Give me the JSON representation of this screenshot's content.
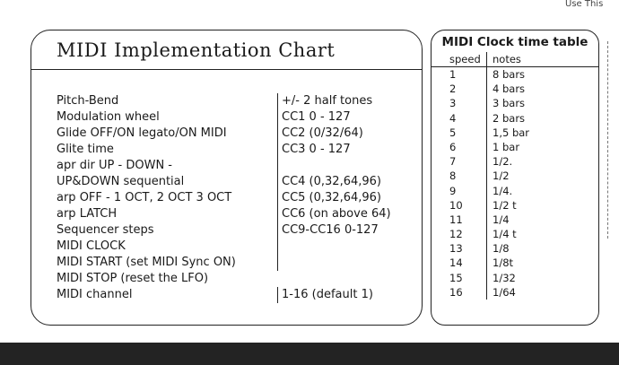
{
  "top_note": "Use This",
  "implementation_chart": {
    "title": "MIDI Implementation Chart",
    "rows": [
      {
        "function": "Pitch-Bend",
        "value": "+/- 2 half tones"
      },
      {
        "function": "Modulation wheel",
        "value": "CC1 0 - 127"
      },
      {
        "function": "Glide OFF/ON legato/ON MIDI",
        "value": "CC2 (0/32/64)"
      },
      {
        "function": "Glite time",
        "value": "CC3 0 - 127"
      },
      {
        "function": "apr dir UP - DOWN -",
        "value": ""
      },
      {
        "function": "UP&DOWN sequential",
        "value": "CC4 (0,32,64,96)"
      },
      {
        "function": "arp OFF - 1 OCT, 2 OCT 3 OCT",
        "value": "CC5 (0,32,64,96)"
      },
      {
        "function": "arp LATCH",
        "value": "CC6  (on above 64)"
      },
      {
        "function": "Sequencer steps",
        "value": "CC9-CC16 0-127"
      },
      {
        "function": "MIDI CLOCK",
        "value": ""
      },
      {
        "function": "MIDI START (set MIDI Sync ON)",
        "value": ""
      },
      {
        "function": "MIDI STOP (reset the LFO)",
        "value": ""
      },
      {
        "function": "MIDI channel",
        "value": "1-16 (default 1)"
      }
    ]
  },
  "clock_table": {
    "title": "MIDI Clock time table",
    "headers": {
      "speed": "speed",
      "notes": "notes"
    },
    "rows": [
      {
        "speed": "1",
        "notes": "8 bars"
      },
      {
        "speed": "2",
        "notes": "4 bars"
      },
      {
        "speed": "3",
        "notes": "3 bars"
      },
      {
        "speed": "4",
        "notes": "2 bars"
      },
      {
        "speed": "5",
        "notes": "1,5 bar"
      },
      {
        "speed": "6",
        "notes": "1 bar"
      },
      {
        "speed": "7",
        "notes": "1/2."
      },
      {
        "speed": "8",
        "notes": "1/2"
      },
      {
        "speed": "9",
        "notes": "1/4."
      },
      {
        "speed": "10",
        "notes": "1/2 t"
      },
      {
        "speed": "11",
        "notes": "1/4"
      },
      {
        "speed": "12",
        "notes": "1/4 t"
      },
      {
        "speed": "13",
        "notes": "1/8"
      },
      {
        "speed": "14",
        "notes": "1/8t"
      },
      {
        "speed": "15",
        "notes": "1/32"
      },
      {
        "speed": "16",
        "notes": "1/64"
      }
    ]
  }
}
